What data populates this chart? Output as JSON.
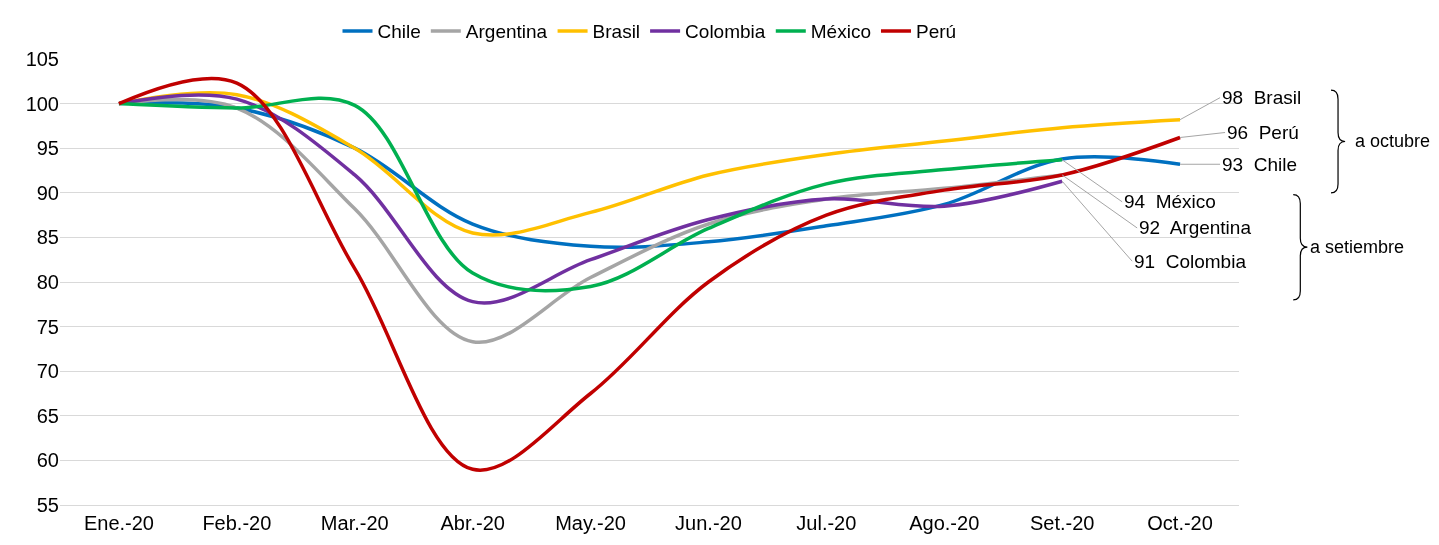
{
  "chart_data": {
    "type": "line",
    "categories": [
      "Ene.-20",
      "Feb.-20",
      "Mar.-20",
      "Abr.-20",
      "May.-20",
      "Jun.-20",
      "Jul.-20",
      "Ago.-20",
      "Set.-20",
      "Oct.-20"
    ],
    "series": [
      {
        "name": "Chile",
        "color": "#0070c0",
        "values": [
          100,
          99.5,
          95,
          86.5,
          84,
          84.5,
          86.3,
          88.7,
          93.8,
          93.2
        ],
        "value_labels": [
          null,
          null,
          null,
          null,
          null,
          null,
          null,
          null,
          null,
          "93"
        ]
      },
      {
        "name": "Argentina",
        "color": "#a5a5a5",
        "values": [
          100,
          99.5,
          88.2,
          73.3,
          80.5,
          86.5,
          89.3,
          90.5,
          92,
          null
        ],
        "value_labels": [
          null,
          null,
          null,
          null,
          null,
          null,
          null,
          null,
          "92",
          null
        ]
      },
      {
        "name": "Brasil",
        "color": "#ffc000",
        "values": [
          100,
          101,
          95,
          85.5,
          87.8,
          92,
          94.3,
          95.8,
          97.3,
          98.2
        ],
        "value_labels": [
          null,
          null,
          null,
          null,
          null,
          null,
          null,
          null,
          null,
          "98"
        ]
      },
      {
        "name": "Colombia",
        "color": "#7030a0",
        "values": [
          100,
          100.5,
          92,
          77.8,
          82.5,
          87,
          89.3,
          88.5,
          91.3,
          null
        ],
        "value_labels": [
          null,
          null,
          null,
          null,
          null,
          null,
          null,
          null,
          "91",
          null
        ]
      },
      {
        "name": "México",
        "color": "#00b050",
        "values": [
          100,
          99.5,
          99.8,
          81,
          79.5,
          86,
          91,
          92.6,
          93.7,
          null
        ],
        "value_labels": [
          null,
          null,
          null,
          null,
          null,
          null,
          null,
          null,
          "94",
          null
        ]
      },
      {
        "name": "Perú",
        "color": "#c00000",
        "values": [
          100,
          102.3,
          81.5,
          59,
          67.5,
          80,
          87.5,
          90.3,
          92,
          96.2
        ],
        "value_labels": [
          null,
          null,
          null,
          null,
          null,
          null,
          null,
          null,
          null,
          "96"
        ]
      }
    ],
    "ylim": [
      55,
      105
    ],
    "yticks": [
      55,
      60,
      65,
      70,
      75,
      80,
      85,
      90,
      95,
      100,
      105
    ],
    "grid": "y",
    "legend": "top",
    "marker": "none",
    "line_style": "solid",
    "annotations": [
      "a octubre",
      "a setiembre"
    ]
  }
}
